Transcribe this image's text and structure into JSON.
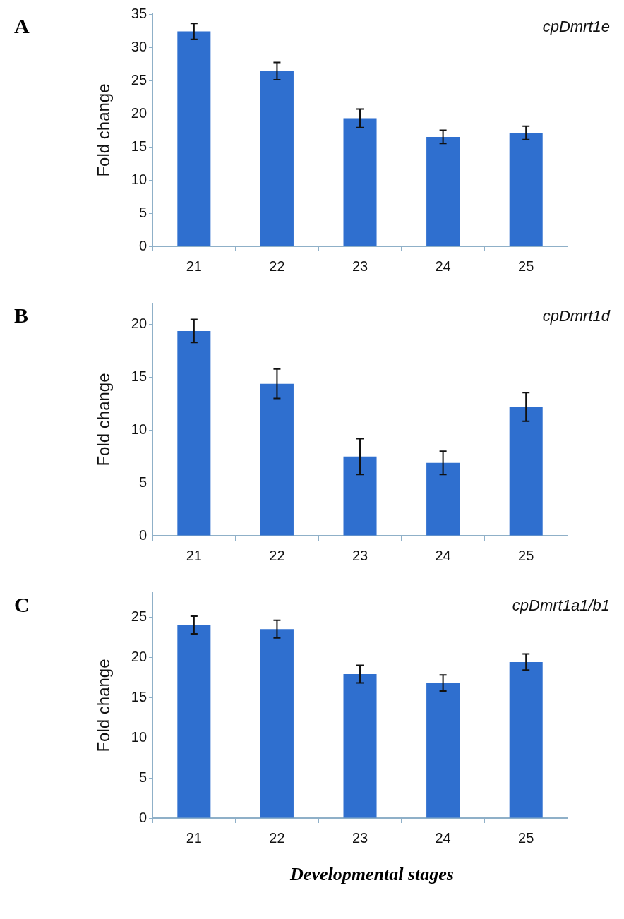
{
  "chart_data": [
    {
      "type": "bar",
      "title": "A",
      "ylabel": "Fold change",
      "annotations": [
        "cpDmrt1e"
      ],
      "categories": [
        "21",
        "22",
        "23",
        "24",
        "25"
      ],
      "values": [
        32.4,
        26.4,
        19.3,
        16.5,
        17.1
      ],
      "errors": [
        1.2,
        1.3,
        1.4,
        1.0,
        1.0
      ],
      "color": "#2f6fcf",
      "ylim": [
        0,
        35
      ],
      "yticks": [
        0,
        5,
        10,
        15,
        20,
        25,
        30,
        35
      ],
      "grid": false,
      "legend": false
    },
    {
      "type": "bar",
      "title": "B",
      "ylabel": "Fold change",
      "annotations": [
        "cpDmrt1d"
      ],
      "categories": [
        "21",
        "22",
        "23",
        "24",
        "25"
      ],
      "values": [
        19.4,
        14.4,
        7.5,
        6.9,
        12.2
      ],
      "errors": [
        1.1,
        1.4,
        1.7,
        1.1,
        1.35
      ],
      "color": "#2f6fcf",
      "ylim": [
        0,
        22
      ],
      "yticks": [
        0,
        5,
        10,
        15,
        20
      ],
      "grid": false,
      "legend": false
    },
    {
      "type": "bar",
      "title": "C",
      "ylabel": "Fold change",
      "xlabel": "Developmental stages",
      "annotations": [
        "cpDmrt1a1/b1"
      ],
      "categories": [
        "21",
        "22",
        "23",
        "24",
        "25"
      ],
      "values": [
        24.0,
        23.5,
        17.9,
        16.8,
        19.4
      ],
      "errors": [
        1.1,
        1.1,
        1.1,
        1.0,
        1.0
      ],
      "color": "#2f6fcf",
      "ylim": [
        0,
        28
      ],
      "yticks": [
        0,
        5,
        10,
        15,
        20,
        25
      ],
      "grid": false,
      "legend": false
    }
  ]
}
